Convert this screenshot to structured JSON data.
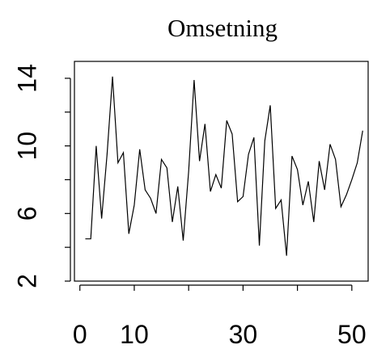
{
  "chart_data": {
    "type": "line",
    "title": "Omsetning",
    "xlabel": "",
    "ylabel": "",
    "xlim": [
      -1,
      53
    ],
    "ylim": [
      2,
      15
    ],
    "x_ticks": [
      0,
      10,
      20,
      30,
      40,
      50
    ],
    "x_tick_labels": [
      "0",
      "10",
      "30",
      "50"
    ],
    "x_tick_label_values": [
      0,
      10,
      30,
      50
    ],
    "y_ticks": [
      2,
      4,
      6,
      8,
      10,
      12,
      14
    ],
    "y_tick_labels": [
      "2",
      "6",
      "10",
      "14"
    ],
    "y_tick_label_values": [
      2,
      6,
      10,
      14
    ],
    "grid": false,
    "series": [
      {
        "x": [
          1,
          2,
          3,
          4,
          5,
          6,
          7,
          8,
          9,
          10,
          11,
          12,
          13,
          14,
          15,
          16,
          17,
          18,
          19,
          20,
          21,
          22,
          23,
          24,
          25,
          26,
          27,
          28,
          29,
          30,
          31,
          32,
          33,
          34,
          35,
          36,
          37,
          38,
          39,
          40,
          41,
          42,
          43,
          44,
          45,
          46,
          47,
          48,
          49,
          50,
          51,
          52
        ],
        "values": [
          4.5,
          4.5,
          10.0,
          5.7,
          9.5,
          14.1,
          9.0,
          9.6,
          4.8,
          6.5,
          9.8,
          7.4,
          6.9,
          6.0,
          9.2,
          8.7,
          5.5,
          7.6,
          4.4,
          8.5,
          13.9,
          9.1,
          11.3,
          7.3,
          8.3,
          7.5,
          11.5,
          10.7,
          6.7,
          7.0,
          9.5,
          10.5,
          4.1,
          10.3,
          12.4,
          6.3,
          6.8,
          3.5,
          9.4,
          8.6,
          6.5,
          7.9,
          5.5,
          9.1,
          7.4,
          10.1,
          9.2,
          6.4,
          7.1,
          8.0,
          9.0,
          10.9
        ]
      }
    ]
  }
}
